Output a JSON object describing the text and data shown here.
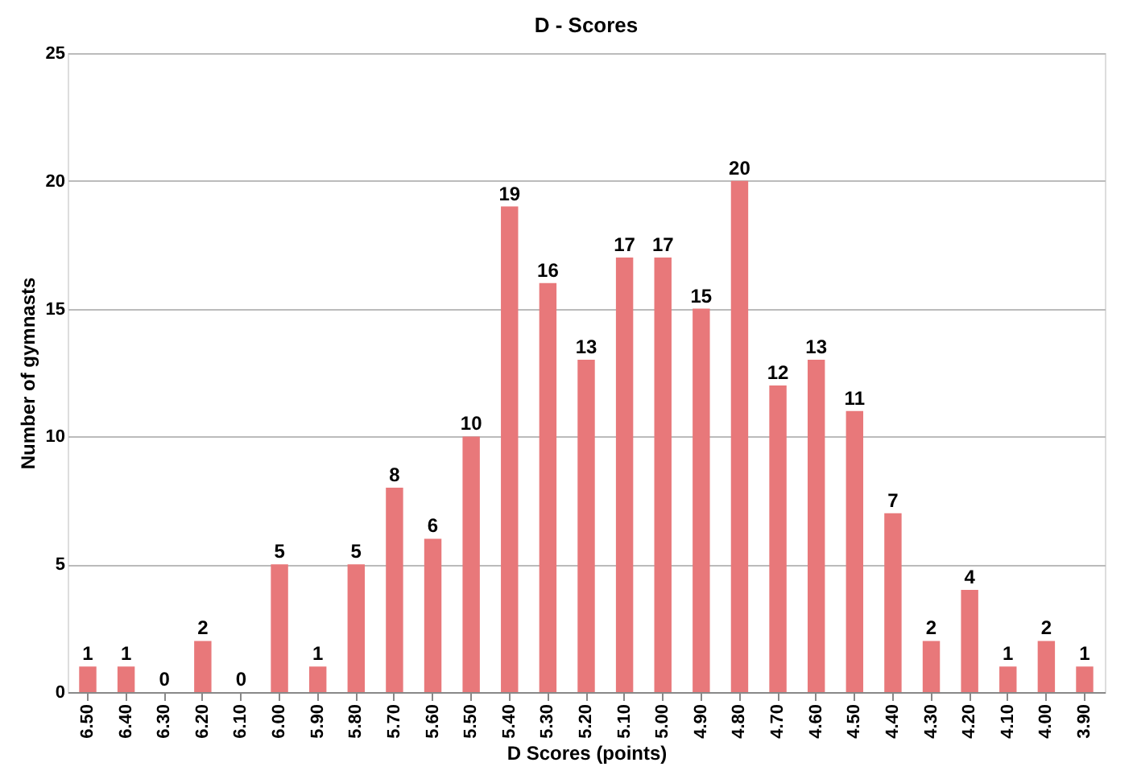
{
  "chart_data": {
    "type": "bar",
    "title": "D - Scores",
    "xlabel": "D Scores (points)",
    "ylabel": "Number of gymnasts",
    "categories": [
      "6.50",
      "6.40",
      "6.30",
      "6.20",
      "6.10",
      "6.00",
      "5.90",
      "5.80",
      "5.70",
      "5.60",
      "5.50",
      "5.40",
      "5.30",
      "5.20",
      "5.10",
      "5.00",
      "4.90",
      "4.80",
      "4.70",
      "4.60",
      "4.50",
      "4.40",
      "4.30",
      "4.20",
      "4.10",
      "4.00",
      "3.90"
    ],
    "values": [
      1,
      1,
      0,
      2,
      0,
      5,
      1,
      5,
      8,
      6,
      10,
      19,
      16,
      13,
      17,
      17,
      15,
      20,
      12,
      13,
      11,
      7,
      2,
      4,
      1,
      2,
      1
    ],
    "color": "#e8787a",
    "ylim": [
      0,
      25
    ],
    "yticks": [
      0,
      5,
      10,
      15,
      20,
      25
    ],
    "grid": "y",
    "data_labels": true
  }
}
